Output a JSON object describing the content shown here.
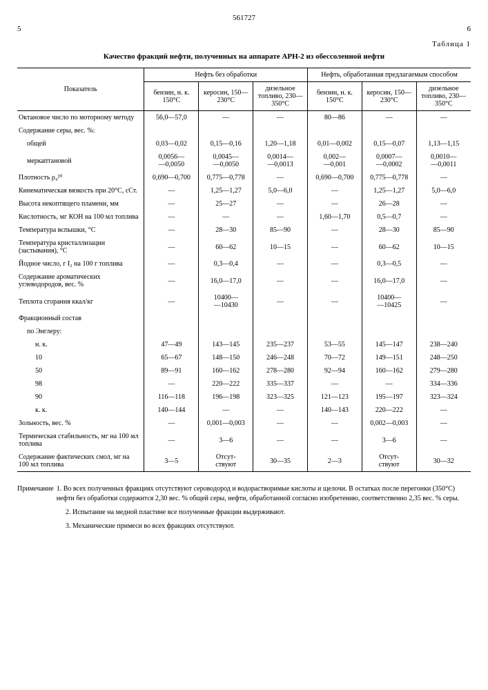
{
  "doc_number": "561727",
  "page_left": "5",
  "page_right": "6",
  "table_label": "Таблица 1",
  "table_title": "Качество фракций нефти, полученных на аппарате АРН-2 из обессоленной нефти",
  "header": {
    "indicator": "Показатель",
    "group_a": "Нефть без обработки",
    "group_b": "Нефть, обработанная предлагаемым способом",
    "cols": {
      "a1": "бензин, н. к. 150°С",
      "a2": "керосин, 150—230°С",
      "a3": "дизельное топливо, 230—350°С",
      "b1": "бензин, н. к. 150°С",
      "b2": "керосин, 150—230°С",
      "b3": "дизельное топливо, 230—350°С"
    }
  },
  "rows": [
    {
      "label": "Октановое число по моторному методу",
      "a1": "56,0—57,0",
      "a2": "—",
      "a3": "—",
      "b1": "80—86",
      "b2": "—",
      "b3": "—"
    },
    {
      "label": "Содержание серы, вес. %:",
      "a1": "",
      "a2": "",
      "a3": "",
      "b1": "",
      "b2": "",
      "b3": ""
    },
    {
      "label": "общей",
      "indent": 1,
      "a1": "0,03—0,02",
      "a2": "0,15—0,16",
      "a3": "1,20—1,18",
      "b1": "0,01—0,002",
      "b2": "0,15—0,07",
      "b3": "1,13—1,15"
    },
    {
      "label": "меркаптановой",
      "indent": 1,
      "a1": "0,0056—\n—0,0050",
      "a2": "0,0045—\n—0,0050",
      "a3": "0,0014—\n—0,0013",
      "b1": "0,002—\n—0,001",
      "b2": "0,0007—\n—0,0002",
      "b3": "0,0010—\n—0,0011"
    },
    {
      "label": "Плотность ρ₄²⁰",
      "a1": "0,690—0,700",
      "a2": "0,775—0,778",
      "a3": "—",
      "b1": "0,690—0,700",
      "b2": "0,775—0,778",
      "b3": "—"
    },
    {
      "label": "Кинематическая вязкость при 20°С, сСт.",
      "a1": "—",
      "a2": "1,25—1,27",
      "a3": "5,0—6,0",
      "b1": "—",
      "b2": "1,25—1,27",
      "b3": "5,0—6,0"
    },
    {
      "label": "Высота некоптящего пламени, мм",
      "a1": "—",
      "a2": "25—27",
      "a3": "—",
      "b1": "—",
      "b2": "26—28",
      "b3": "—"
    },
    {
      "label": "Кислотность, мг КОН на 100 мл топлива",
      "a1": "—",
      "a2": "—",
      "a3": "—",
      "b1": "1,60—1,70",
      "b2": "0,5—0,7",
      "b3": "—"
    },
    {
      "label": "Температура вспышки, °С",
      "a1": "—",
      "a2": "28—30",
      "a3": "85—90",
      "b1": "—",
      "b2": "28—30",
      "b3": "85—90"
    },
    {
      "label": "Температура кристаллизации (застывания), °С",
      "a1": "—",
      "a2": "60—62",
      "a3": "10—15",
      "b1": "—",
      "b2": "60—62",
      "b3": "10—15"
    },
    {
      "label": "Йодное число, г I₂ на 100 г топлива",
      "a1": "—",
      "a2": "0,3—0,4",
      "a3": "—",
      "b1": "—",
      "b2": "0,3—0,5",
      "b3": "—"
    },
    {
      "label": "Содержание ароматических углеводородов, вес. %",
      "a1": "—",
      "a2": "16,0—17,0",
      "a3": "—",
      "b1": "—",
      "b2": "16,0—17,0",
      "b3": "—"
    },
    {
      "label": "Теплота сгорания ккал/кг",
      "a1": "—",
      "a2": "10400—\n—10430",
      "a3": "—",
      "b1": "—",
      "b2": "10400—\n—10425",
      "b3": "—"
    },
    {
      "label": "Фракционный состав",
      "a1": "",
      "a2": "",
      "a3": "",
      "b1": "",
      "b2": "",
      "b3": ""
    },
    {
      "label": "по Энглеру:",
      "indent": 1,
      "a1": "",
      "a2": "",
      "a3": "",
      "b1": "",
      "b2": "",
      "b3": ""
    },
    {
      "label": "н. к.",
      "indent": 2,
      "a1": "47—49",
      "a2": "143—145",
      "a3": "235—237",
      "b1": "53—55",
      "b2": "145—147",
      "b3": "238—240"
    },
    {
      "label": "10",
      "indent": 2,
      "a1": "65—67",
      "a2": "148—150",
      "a3": "246—248",
      "b1": "70—72",
      "b2": "149—151",
      "b3": "248—250"
    },
    {
      "label": "50",
      "indent": 2,
      "a1": "89—91",
      "a2": "160—162",
      "a3": "278—280",
      "b1": "92—94",
      "b2": "160—162",
      "b3": "279—280"
    },
    {
      "label": "98",
      "indent": 2,
      "a1": "—",
      "a2": "220—222",
      "a3": "335—337",
      "b1": "—",
      "b2": "—",
      "b3": "334—336"
    },
    {
      "label": "90",
      "indent": 2,
      "a1": "116—118",
      "a2": "196—198",
      "a3": "323—325",
      "b1": "121—123",
      "b2": "195—197",
      "b3": "323—324"
    },
    {
      "label": "к. к.",
      "indent": 2,
      "a1": "140—144",
      "a2": "—",
      "a3": "—",
      "b1": "140—143",
      "b2": "220—222",
      "b3": "—"
    },
    {
      "label": "Зольность, вес. %",
      "a1": "—",
      "a2": "0,001—0,003",
      "a3": "—",
      "b1": "—",
      "b2": "0,002—0,003",
      "b3": "—"
    },
    {
      "label": "Термическая стабильность, мг на 100 мл топлива",
      "a1": "—",
      "a2": "3—6",
      "a3": "—",
      "b1": "—",
      "b2": "3—6",
      "b3": "—"
    },
    {
      "label": "Содержание фактических смол, мг на 100 мл топлива",
      "a1": "3—5",
      "a2": "Отсут-\nствуют",
      "a3": "30—35",
      "b1": "2—3",
      "b2": "Отсут-\nствуют",
      "b3": "30—32"
    }
  ],
  "notes": {
    "label": "Примечание",
    "n1": "1. Во всех полученных фракциях отсутствуют сероводород и водорастворимые кислоты и щелочи. В остатках после перегонки (350°С) нефти без обработки содержится 2,30 вес. % общей серы, нефти, обработанной согласно изобретению, соответственно 2,35 вес. % серы.",
    "n2": "2. Испытание на медной пластине все полученные фракции выдерживают.",
    "n3": "3. Механические примеси во всех фракциях отсутствуют."
  }
}
